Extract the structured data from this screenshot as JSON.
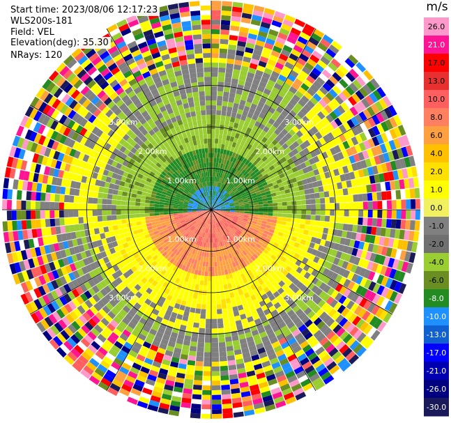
{
  "header": {
    "start_time": "Start time: 2023/08/06 12:17:23",
    "instrument": "WLS200s-181",
    "field": "Field: VEL",
    "elevation": "Elevation(deg): 35.30",
    "nrays": "NRays: 120"
  },
  "colorbar": {
    "unit": "m/s",
    "ticks": [
      "26.0",
      "21.0",
      "17.0",
      "13.0",
      "10.0",
      "8.0",
      "6.0",
      "4.0",
      "2.0",
      "1.0",
      "0.0",
      "-1.0",
      "-2.0",
      "-4.0",
      "-6.0",
      "-8.0",
      "-10.0",
      "-13.0",
      "-17.0",
      "-21.0",
      "-26.0",
      "-30.0"
    ],
    "colors": [
      "#ff99cc",
      "#ff1493",
      "#ff0000",
      "#e83030",
      "#ff5f5f",
      "#ff8060",
      "#ffa040",
      "#ffc000",
      "#ffe000",
      "#ffff00",
      "#f0f060",
      "#808080",
      "#707070",
      "#9acd32",
      "#6b8e23",
      "#228b22",
      "#1e90ff",
      "#1060d0",
      "#0000ff",
      "#0000b0",
      "#000080",
      "#1a1a5a"
    ]
  },
  "range_rings": [
    {
      "label": "1.00km",
      "ranges_km": 1
    },
    {
      "label": "2.00km",
      "ranges_km": 2
    },
    {
      "label": "3.00km",
      "ranges_km": 3
    }
  ]
}
